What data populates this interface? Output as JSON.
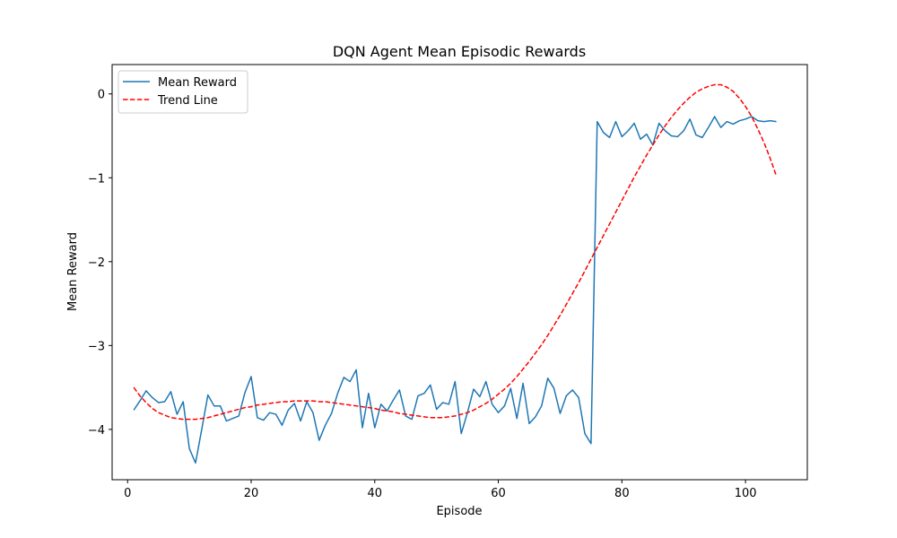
{
  "chart_data": {
    "type": "line",
    "title": "DQN Agent Mean Episodic Rewards",
    "xlabel": "Episode",
    "ylabel": "Mean Reward",
    "xlim": [
      -2.5,
      110
    ],
    "ylim": [
      -4.6,
      0.35
    ],
    "xticks": [
      0,
      20,
      40,
      60,
      80,
      100
    ],
    "yticks": [
      0,
      -1,
      -2,
      -3,
      -4
    ],
    "ytick_labels": [
      "0",
      "−1",
      "−2",
      "−3",
      "−4"
    ],
    "grid": false,
    "legend_position": "top-left",
    "x": [
      1,
      2,
      3,
      4,
      5,
      6,
      7,
      8,
      9,
      10,
      11,
      12,
      13,
      14,
      15,
      16,
      17,
      18,
      19,
      20,
      21,
      22,
      23,
      24,
      25,
      26,
      27,
      28,
      29,
      30,
      31,
      32,
      33,
      34,
      35,
      36,
      37,
      38,
      39,
      40,
      41,
      42,
      43,
      44,
      45,
      46,
      47,
      48,
      49,
      50,
      51,
      52,
      53,
      54,
      55,
      56,
      57,
      58,
      59,
      60,
      61,
      62,
      63,
      64,
      65,
      66,
      67,
      68,
      69,
      70,
      71,
      72,
      73,
      74,
      75,
      76,
      77,
      78,
      79,
      80,
      81,
      82,
      83,
      84,
      85,
      86,
      87,
      88,
      89,
      90,
      91,
      92,
      93,
      94,
      95,
      96,
      97,
      98,
      99,
      100,
      101,
      102,
      103,
      104,
      105
    ],
    "series": [
      {
        "name": "Mean Reward",
        "color": "#1f77b4",
        "style": "solid",
        "values": [
          -3.77,
          -3.66,
          -3.54,
          -3.62,
          -3.68,
          -3.67,
          -3.55,
          -3.82,
          -3.67,
          -4.23,
          -4.4,
          -4.0,
          -3.59,
          -3.72,
          -3.72,
          -3.9,
          -3.87,
          -3.84,
          -3.56,
          -3.37,
          -3.86,
          -3.89,
          -3.8,
          -3.82,
          -3.95,
          -3.77,
          -3.69,
          -3.9,
          -3.67,
          -3.8,
          -4.13,
          -3.95,
          -3.81,
          -3.57,
          -3.38,
          -3.43,
          -3.29,
          -3.98,
          -3.57,
          -3.98,
          -3.7,
          -3.78,
          -3.65,
          -3.53,
          -3.84,
          -3.88,
          -3.6,
          -3.57,
          -3.47,
          -3.76,
          -3.68,
          -3.7,
          -3.43,
          -4.05,
          -3.8,
          -3.52,
          -3.61,
          -3.43,
          -3.7,
          -3.8,
          -3.72,
          -3.51,
          -3.87,
          -3.45,
          -3.93,
          -3.85,
          -3.72,
          -3.39,
          -3.51,
          -3.81,
          -3.6,
          -3.53,
          -3.62,
          -4.05,
          -4.17,
          -0.33,
          -0.46,
          -0.52,
          -0.33,
          -0.51,
          -0.44,
          -0.35,
          -0.54,
          -0.48,
          -0.61,
          -0.35,
          -0.44,
          -0.5,
          -0.51,
          -0.44,
          -0.3,
          -0.49,
          -0.52,
          -0.4,
          -0.27,
          -0.4,
          -0.33,
          -0.36,
          -0.32,
          -0.3,
          -0.27,
          -0.32,
          -0.33,
          -0.32,
          -0.33
        ]
      },
      {
        "name": "Trend Line",
        "color": "#ff0000",
        "style": "dashed",
        "values": [
          -3.5,
          -3.6,
          -3.68,
          -3.75,
          -3.8,
          -3.83,
          -3.86,
          -3.87,
          -3.88,
          -3.88,
          -3.88,
          -3.87,
          -3.86,
          -3.84,
          -3.82,
          -3.8,
          -3.78,
          -3.76,
          -3.74,
          -3.73,
          -3.71,
          -3.7,
          -3.69,
          -3.68,
          -3.67,
          -3.67,
          -3.66,
          -3.66,
          -3.66,
          -3.66,
          -3.67,
          -3.67,
          -3.68,
          -3.69,
          -3.7,
          -3.71,
          -3.72,
          -3.73,
          -3.74,
          -3.75,
          -3.77,
          -3.78,
          -3.79,
          -3.81,
          -3.82,
          -3.83,
          -3.84,
          -3.85,
          -3.86,
          -3.86,
          -3.86,
          -3.85,
          -3.84,
          -3.82,
          -3.8,
          -3.77,
          -3.73,
          -3.69,
          -3.64,
          -3.58,
          -3.52,
          -3.45,
          -3.37,
          -3.28,
          -3.19,
          -3.09,
          -2.99,
          -2.88,
          -2.76,
          -2.64,
          -2.51,
          -2.38,
          -2.25,
          -2.11,
          -1.97,
          -1.83,
          -1.69,
          -1.55,
          -1.41,
          -1.27,
          -1.13,
          -0.99,
          -0.86,
          -0.73,
          -0.61,
          -0.49,
          -0.38,
          -0.28,
          -0.19,
          -0.11,
          -0.04,
          0.02,
          0.06,
          0.09,
          0.11,
          0.11,
          0.08,
          0.03,
          -0.05,
          -0.15,
          -0.27,
          -0.42,
          -0.58,
          -0.77,
          -0.98
        ]
      }
    ]
  }
}
